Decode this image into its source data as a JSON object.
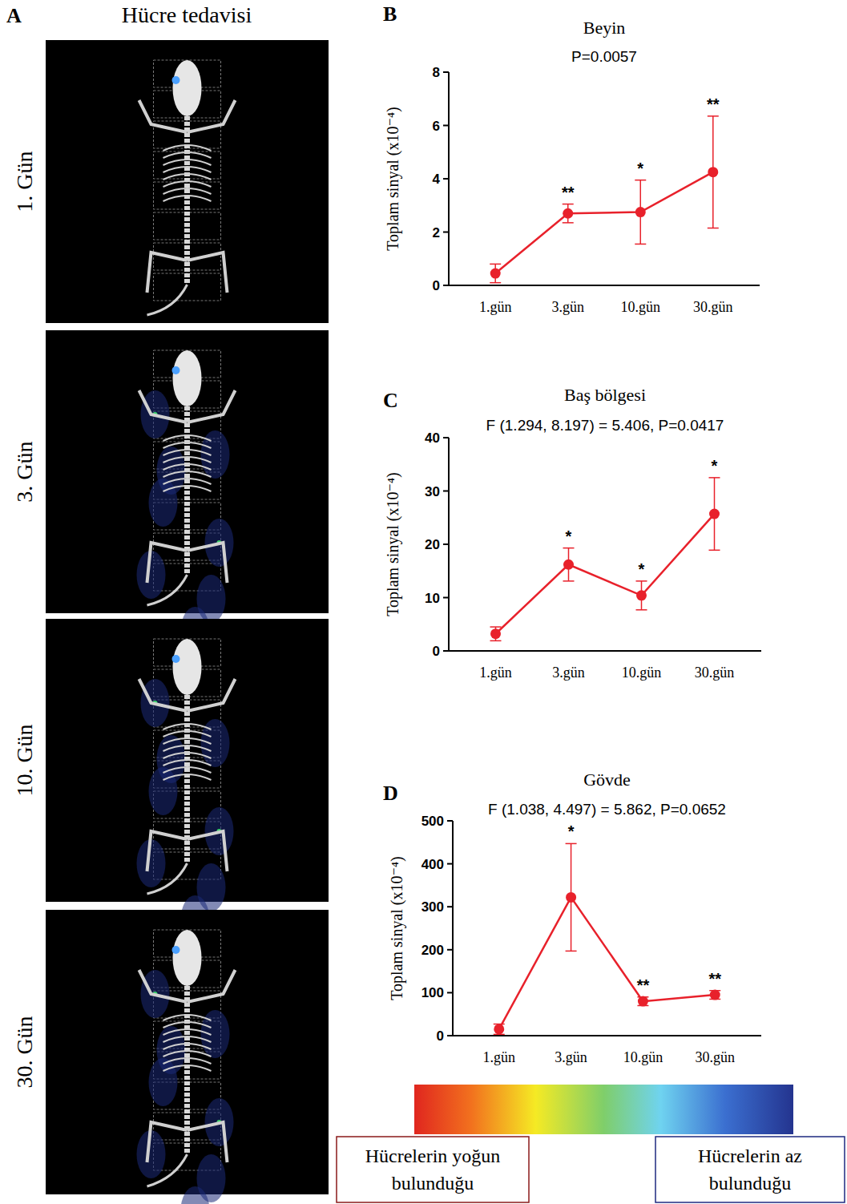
{
  "image_panel": {
    "letter": "A",
    "title": "Hücre tedavisi",
    "labels": [
      "1. Gün",
      "3. Gün",
      "10. Gün",
      "30. Gün"
    ]
  },
  "colorbar": {
    "high_label": "Hücrelerin yoğun bulunduğu",
    "low_label": "Hücrelerin az bulunduğu"
  },
  "chart_data": [
    {
      "type": "line",
      "panel": "B",
      "title": "Beyin",
      "subtitle": "P=0.0057",
      "y_label": "Toplam sinyal (x10⁻⁴)",
      "categories": [
        "1.gün",
        "3.gün",
        "10.gün",
        "30.gün"
      ],
      "values": [
        0.45,
        2.7,
        2.75,
        4.25
      ],
      "errors": [
        0.35,
        0.35,
        1.2,
        2.1
      ],
      "annotations": [
        null,
        "**",
        "*",
        "**"
      ],
      "color": "#e8212b",
      "marker": "circle",
      "ylim": [
        0,
        8
      ],
      "yticks": [
        0,
        2,
        4,
        6,
        8
      ]
    },
    {
      "type": "line",
      "panel": "C",
      "title": "Baş bölgesi",
      "subtitle": "F (1.294, 8.197) = 5.406, P=0.0417",
      "y_label": "Toplam sinyal (x10⁻⁴)",
      "categories": [
        "1.gün",
        "3.gün",
        "10.gün",
        "30.gün"
      ],
      "values": [
        3.2,
        16.2,
        10.4,
        25.7
      ],
      "errors": [
        1.3,
        3.1,
        2.7,
        6.8
      ],
      "annotations": [
        null,
        "*",
        "*",
        "*"
      ],
      "color": "#e8212b",
      "marker": "circle",
      "ylim": [
        0,
        40
      ],
      "yticks": [
        0,
        10,
        20,
        30,
        40
      ]
    },
    {
      "type": "line",
      "panel": "D",
      "title": "Gövde",
      "subtitle": "F (1.038, 4.497) = 5.862, P=0.0652",
      "y_label": "Toplam sinyal (x10⁻⁴)",
      "categories": [
        "1.gün",
        "3.gün",
        "10.gün",
        "30.gün"
      ],
      "values": [
        15,
        322,
        80,
        95
      ],
      "errors": [
        12,
        125,
        10,
        10
      ],
      "annotations": [
        null,
        "*",
        "**",
        "**"
      ],
      "color": "#e8212b",
      "marker": "circle",
      "ylim": [
        0,
        500
      ],
      "yticks": [
        0,
        100,
        200,
        300,
        400,
        500
      ]
    }
  ]
}
